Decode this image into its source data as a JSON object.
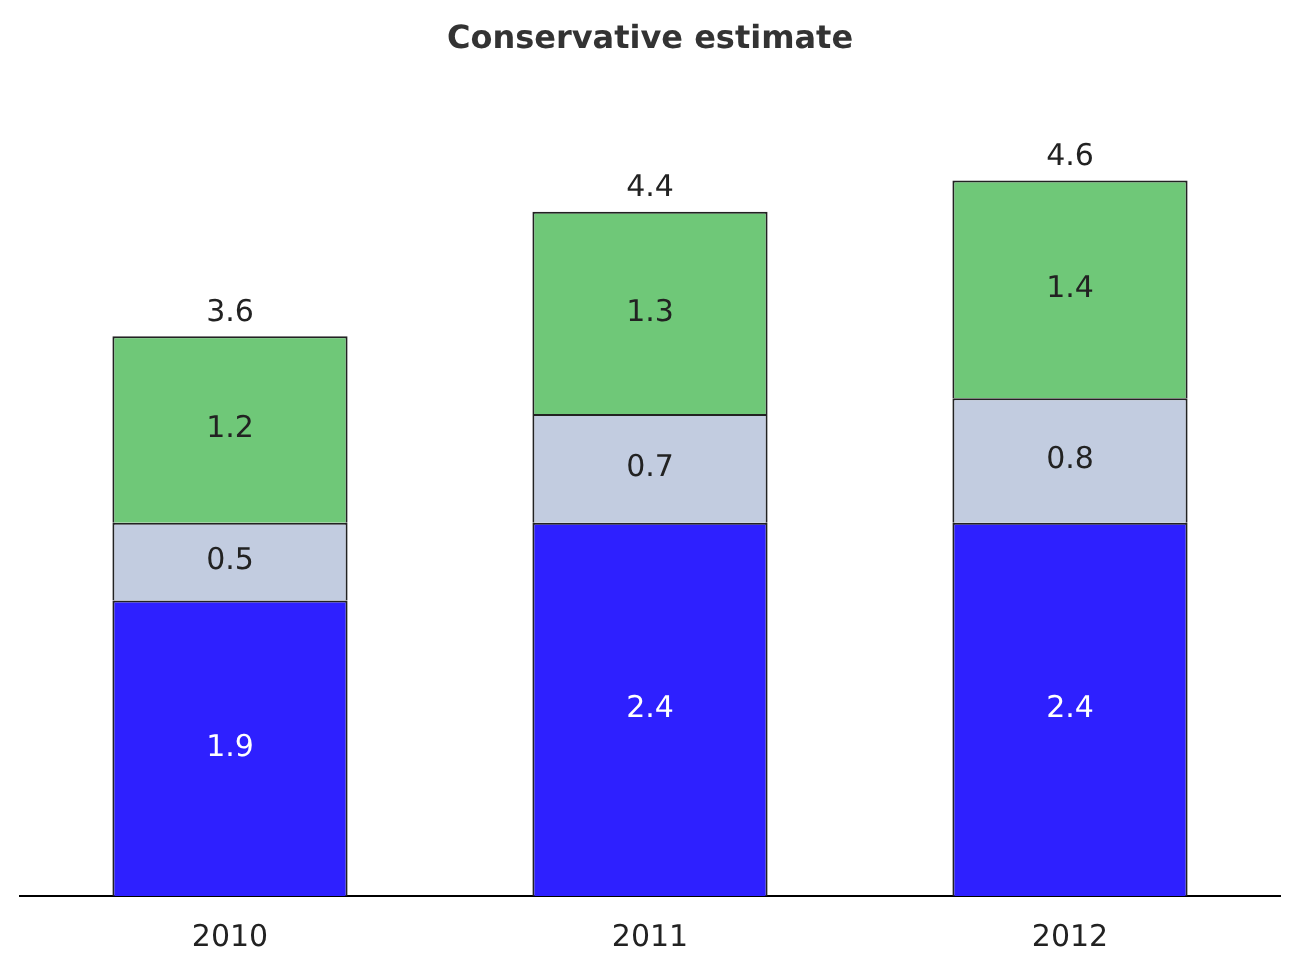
{
  "chart_data": {
    "type": "bar",
    "title": "Conservative estimate",
    "categories": [
      "2010",
      "2011",
      "2012"
    ],
    "stacked": true,
    "data_labels": true,
    "grid": false,
    "legend": false,
    "tick_labels": "x",
    "series": [
      {
        "color": "#2e20ff",
        "values": [
          1.9,
          2.4,
          2.4
        ]
      },
      {
        "color": "#c2cce0",
        "values": [
          0.5,
          0.7,
          0.8
        ]
      },
      {
        "color": "#6fc878",
        "values": [
          1.2,
          1.3,
          1.4
        ]
      }
    ],
    "totals": [
      "3.6",
      "4.4",
      "4.6"
    ]
  }
}
